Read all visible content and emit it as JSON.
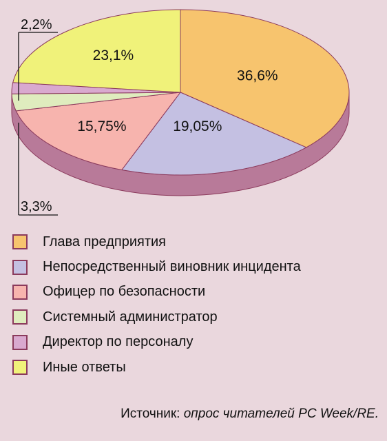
{
  "chart_data": {
    "type": "pie",
    "slices": [
      {
        "label": "Глава предприятия",
        "value": 36.6,
        "value_label": "36,6%",
        "color": "#f7c46e"
      },
      {
        "label": "Непосредственный виновник инцидента",
        "value": 19.05,
        "value_label": "19,05%",
        "color": "#c4c0e2"
      },
      {
        "label": "Офицер по безопасности",
        "value": 15.75,
        "value_label": "15,75%",
        "color": "#f7b4ae"
      },
      {
        "label": "Системный администратор",
        "value": 3.3,
        "value_label": "3,3%",
        "color": "#dfecbe"
      },
      {
        "label": "Директор по персоналу",
        "value": 2.2,
        "value_label": "2,2%",
        "color": "#d9a9cf"
      },
      {
        "label": "Иные ответы",
        "value": 23.1,
        "value_label": "23,1%",
        "color": "#f0f27a"
      }
    ],
    "side_color": "#b87a99",
    "border_color": "#8b3a5c",
    "legend_placement": "bottom"
  },
  "source": {
    "prefix": "Источник: ",
    "text": "опрос читателей PC Week/RE."
  }
}
